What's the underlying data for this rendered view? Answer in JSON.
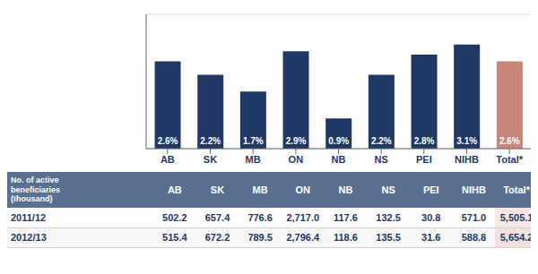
{
  "chart_data": {
    "type": "bar",
    "categories": [
      "AB",
      "SK",
      "MB",
      "ON",
      "NB",
      "NS",
      "PEI",
      "NIHB",
      "Total*"
    ],
    "values": [
      2.6,
      2.2,
      1.7,
      2.9,
      0.9,
      2.2,
      2.8,
      3.1,
      2.6
    ],
    "value_labels": [
      "2.6%",
      "2.2%",
      "1.7%",
      "2.9%",
      "0.9%",
      "2.2%",
      "2.8%",
      "3.1%",
      "2.6%"
    ],
    "data_labels": true,
    "colors": [
      "#1f3864",
      "#1f3864",
      "#1f3864",
      "#1f3864",
      "#1f3864",
      "#1f3864",
      "#1f3864",
      "#1f3864",
      "#c8867a"
    ],
    "ylim": [
      0,
      4.0
    ],
    "yticks": [
      0.5,
      1,
      1.5,
      2,
      2.5,
      3,
      3.5
    ],
    "grid": true,
    "tick_labels": "x",
    "table": {
      "header": "No. of active\nbeneficiaries\n(thousand)",
      "rows": [
        {
          "label": "2011/12",
          "values": [
            "502.2",
            "657.4",
            "776.6",
            "2,717.0",
            "117.6",
            "132.5",
            "30.8",
            "571.0",
            "5,505.1"
          ]
        },
        {
          "label": "2012/13",
          "values": [
            "515.4",
            "672.2",
            "789.5",
            "2,796.4",
            "118.6",
            "135.5",
            "31.6",
            "588.8",
            "5,654.2"
          ]
        }
      ]
    }
  }
}
